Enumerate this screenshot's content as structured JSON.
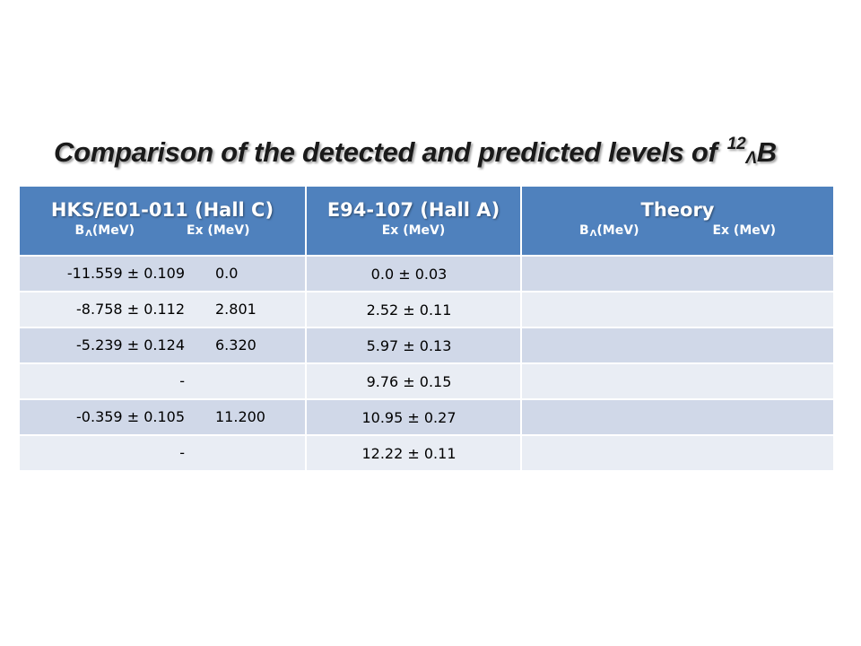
{
  "title": {
    "text": "Comparison of the detected and predicted levels of ",
    "mass_number": "12",
    "hyperon": "Λ",
    "nucleus": "B"
  },
  "table": {
    "headers": [
      {
        "main": "HKS/E01-011 (Hall C)",
        "sub": [
          "B",
          "Λ",
          " (MeV)",
          "Ex (MeV)"
        ]
      },
      {
        "main": "E94-107 (Hall A)",
        "sub": [
          "Ex (MeV)"
        ]
      },
      {
        "main": "Theory",
        "sub": [
          "B",
          "Λ",
          " (MeV)",
          "Ex (MeV)"
        ]
      }
    ],
    "rows": [
      {
        "hks_b": "-11.559  ±  0.109",
        "hks_ex": "0.0",
        "e94_ex": "0.0  ±  0.03",
        "theory": ""
      },
      {
        "hks_b": "-8.758  ±  0.112",
        "hks_ex": "2.801",
        "e94_ex": "2.52  ±  0.11",
        "theory": ""
      },
      {
        "hks_b": "-5.239  ±  0.124",
        "hks_ex": "6.320",
        "e94_ex": "5.97  ±  0.13",
        "theory": ""
      },
      {
        "hks_b": "-",
        "hks_ex": "",
        "e94_ex": "9.76  ±  0.15",
        "theory": ""
      },
      {
        "hks_b": "-0.359  ±  0.105",
        "hks_ex": "11.200",
        "e94_ex": "10.95  ±  0.27",
        "theory": ""
      },
      {
        "hks_b": "-",
        "hks_ex": "",
        "e94_ex": "12.22  ±  0.11",
        "theory": ""
      }
    ]
  },
  "colors": {
    "header_bg": "#4f81bd",
    "row_odd": "#d0d8e8",
    "row_even": "#e9edf4"
  }
}
